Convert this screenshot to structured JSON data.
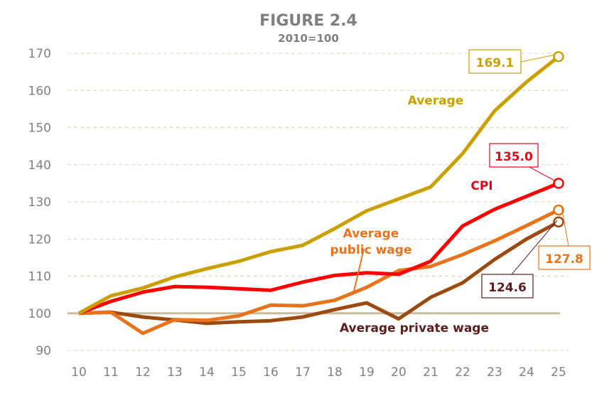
{
  "chart_data": {
    "type": "line",
    "title": "FIGURE 2.4",
    "subtitle": "2010=100",
    "xlabel": "",
    "ylabel": "",
    "x": [
      "10",
      "11",
      "12",
      "13",
      "14",
      "15",
      "16",
      "17",
      "18",
      "19",
      "20",
      "21",
      "22",
      "23",
      "24",
      "25"
    ],
    "yticks": [
      90,
      100,
      110,
      120,
      130,
      140,
      150,
      160,
      170
    ],
    "ylim": [
      90,
      170
    ],
    "grid": true,
    "baseline": 100,
    "baseline_color": "#C8BC9E",
    "series": [
      {
        "name": "Average",
        "color": "#C9A000",
        "label_color": "#C9A000",
        "end_label": "169.1",
        "values": [
          100,
          104.7,
          106.8,
          109.8,
          112,
          114,
          116.6,
          118.3,
          122.8,
          127.6,
          130.8,
          134,
          143,
          154.5,
          162.3,
          169.1
        ]
      },
      {
        "name": "CPI",
        "color": "#FF0000",
        "label_color": "#E8001C",
        "end_label": "135.0",
        "values": [
          100,
          103.2,
          105.7,
          107.2,
          107,
          106.6,
          106.2,
          108.4,
          110.2,
          110.9,
          110.5,
          114,
          123.5,
          128,
          131.5,
          135.0
        ]
      },
      {
        "name": "Average public wage",
        "color": "#E8731C",
        "label_color": "#E8731C",
        "end_label": "127.8",
        "values": [
          100,
          100.3,
          94.6,
          98.3,
          98.1,
          99.3,
          102.2,
          102,
          103.5,
          107,
          111.5,
          112.6,
          115.8,
          119.5,
          123.6,
          127.8
        ]
      },
      {
        "name": "Average private wage",
        "color": "#9C4A10",
        "label_color": "#5A1E1E",
        "end_label": "124.6",
        "values": [
          100,
          100.3,
          99,
          98.2,
          97.3,
          97.7,
          98,
          99,
          101,
          102.8,
          98.5,
          104.3,
          108.2,
          114.5,
          120,
          124.6
        ]
      }
    ]
  }
}
